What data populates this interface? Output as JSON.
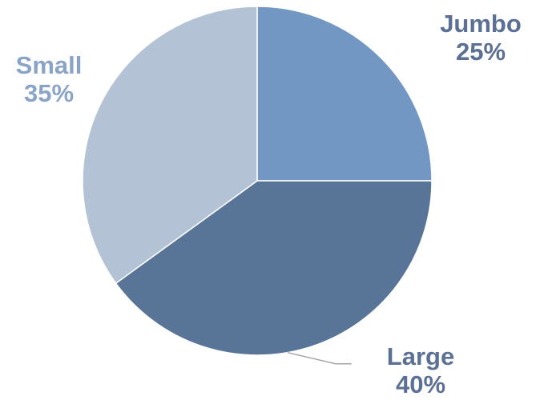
{
  "chart_data": {
    "type": "pie",
    "title": "",
    "slices": [
      {
        "label": "Jumbo",
        "value": 25,
        "value_label": "25%",
        "color": "#7397C3",
        "label_color": "#5B7094"
      },
      {
        "label": "Large",
        "value": 40,
        "value_label": "40%",
        "color": "#587496",
        "label_color": "#5B7094"
      },
      {
        "label": "Small",
        "value": 35,
        "value_label": "35%",
        "color": "#B4C2D6",
        "label_color": "#8AA4C8"
      }
    ],
    "start_angle_deg": 0,
    "direction": "clockwise",
    "slice_border_color": "#ffffff",
    "leader_line_color": "#A6A6A6",
    "legend": "none"
  }
}
